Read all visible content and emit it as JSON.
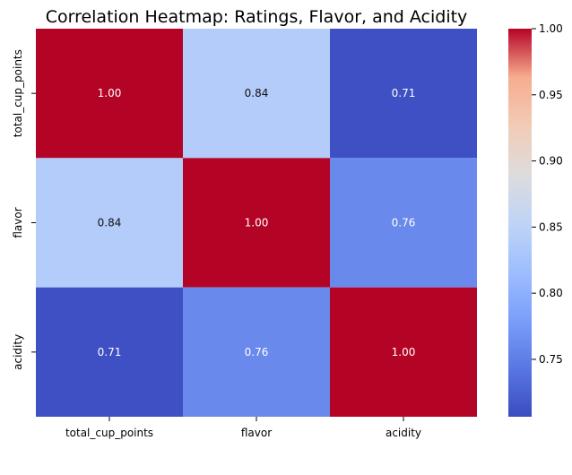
{
  "chart_data": {
    "type": "heatmap",
    "title": "Correlation Heatmap: Ratings, Flavor, and Acidity",
    "x_categories": [
      "total_cup_points",
      "flavor",
      "acidity"
    ],
    "y_categories": [
      "total_cup_points",
      "flavor",
      "acidity"
    ],
    "values": [
      [
        1.0,
        0.84,
        0.71
      ],
      [
        0.84,
        1.0,
        0.76
      ],
      [
        0.71,
        0.76,
        1.0
      ]
    ],
    "annotations": [
      [
        "1.00",
        "0.84",
        "0.71"
      ],
      [
        "0.84",
        "1.00",
        "0.76"
      ],
      [
        "0.71",
        "0.76",
        "1.00"
      ]
    ],
    "colorbar": {
      "ticks": [
        "0.75",
        "0.80",
        "0.85",
        "0.90",
        "0.95",
        "1.00"
      ],
      "tick_values": [
        0.75,
        0.8,
        0.85,
        0.9,
        0.95,
        1.0
      ],
      "range": [
        0.7066,
        1.0
      ],
      "colormap": "coolwarm",
      "placement": "right"
    },
    "grid": false,
    "colors": {
      "low": "#3b4cc0",
      "high": "#b40426"
    }
  }
}
